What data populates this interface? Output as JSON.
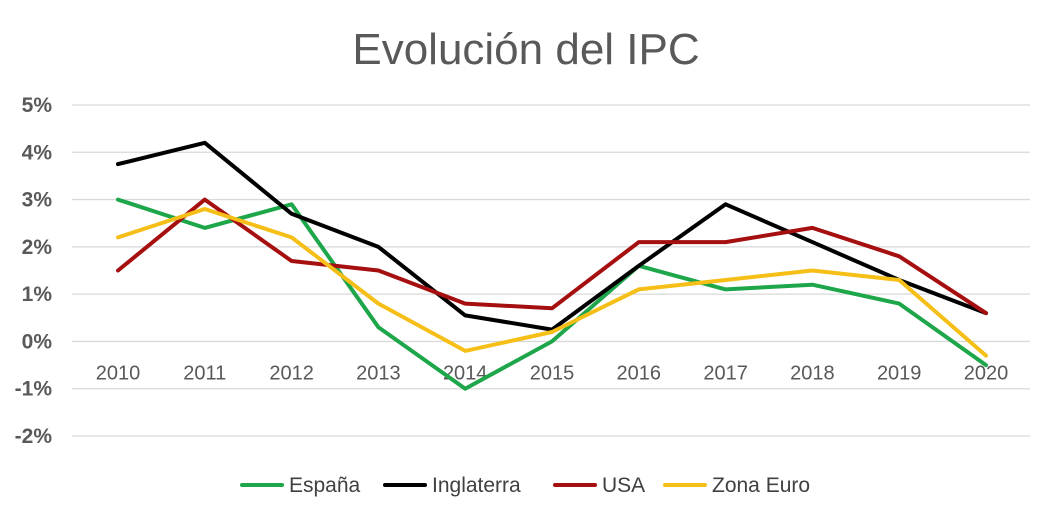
{
  "chart_data": {
    "type": "line",
    "title": "Evolución del IPC",
    "xlabel": "",
    "ylabel": "",
    "categories": [
      "2010",
      "2011",
      "2012",
      "2013",
      "2014",
      "2015",
      "2016",
      "2017",
      "2018",
      "2019",
      "2020"
    ],
    "ylim": [
      -2,
      5
    ],
    "yticks": [
      5,
      4,
      3,
      2,
      1,
      0,
      -1,
      -2
    ],
    "ytick_labels": [
      "5%",
      "4%",
      "3%",
      "2%",
      "1%",
      "0%",
      "-1%",
      "-2%"
    ],
    "grid": true,
    "legend_position": "bottom",
    "series": [
      {
        "name": "España",
        "color": "#1ea64a",
        "values": [
          3.0,
          2.4,
          2.9,
          0.3,
          -1.0,
          0.0,
          1.6,
          1.1,
          1.2,
          0.8,
          -0.5
        ]
      },
      {
        "name": "Inglaterra",
        "color": "#000000",
        "values": [
          3.75,
          4.2,
          2.7,
          2.0,
          0.55,
          0.25,
          1.6,
          2.9,
          2.1,
          1.3,
          0.6
        ]
      },
      {
        "name": "USA",
        "color": "#a50f0f",
        "values": [
          1.5,
          3.0,
          1.7,
          1.5,
          0.8,
          0.7,
          2.1,
          2.1,
          2.4,
          1.8,
          0.6
        ]
      },
      {
        "name": "Zona Euro",
        "color": "#f5bf18",
        "values": [
          2.2,
          2.8,
          2.2,
          0.8,
          -0.2,
          0.2,
          1.1,
          1.3,
          1.5,
          1.3,
          -0.3
        ]
      }
    ]
  }
}
